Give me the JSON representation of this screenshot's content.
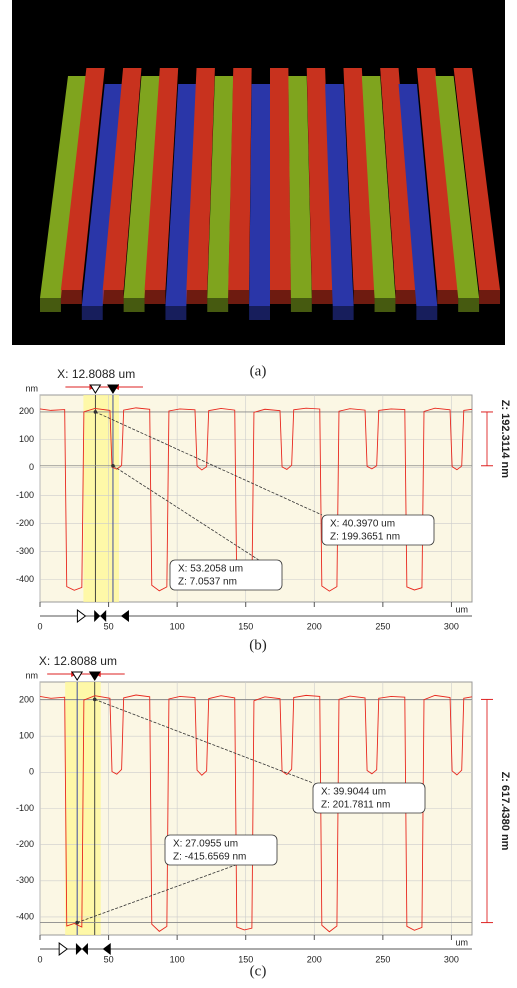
{
  "captions": [
    "(a)",
    "(b)",
    "(c)"
  ],
  "chart_data": [
    {
      "type": "line",
      "header": "X: 12.8088 um",
      "z_label": "Z: 192.3114 nm",
      "y_unit": "nm",
      "x_unit": "um",
      "xlim": [
        0,
        315
      ],
      "ylim": [
        -480,
        260
      ],
      "xticks": [
        0,
        50,
        100,
        150,
        200,
        250,
        300
      ],
      "yticks": [
        200,
        100,
        0,
        -100,
        -200,
        -300,
        -400
      ],
      "grid": true,
      "x": [
        0,
        8,
        18,
        19.5,
        25,
        30.5,
        32,
        40,
        51,
        52.5,
        56,
        59.5,
        61,
        70,
        80,
        81.5,
        87,
        92.5,
        94,
        102,
        113,
        114.5,
        118,
        121.5,
        123,
        132,
        142,
        143.5,
        149,
        154.5,
        156,
        164,
        175,
        176.5,
        180,
        183.5,
        185,
        194,
        204,
        205.5,
        211,
        216.5,
        218,
        226,
        237,
        238.5,
        242,
        245.5,
        247,
        256,
        266,
        267.5,
        273,
        278.5,
        280,
        288,
        299,
        300.5,
        304,
        307.5,
        309,
        315
      ],
      "series": [
        {
          "color": "#e8281e",
          "values": [
            210,
            205,
            208,
            -425,
            -438,
            -428,
            200,
            212,
            205,
            2,
            -5,
            8,
            206,
            214,
            209,
            -420,
            -440,
            -426,
            203,
            210,
            207,
            6,
            -8,
            4,
            204,
            212,
            206,
            -428,
            -436,
            -431,
            198,
            209,
            204,
            3,
            -6,
            9,
            207,
            213,
            210,
            -423,
            -441,
            -425,
            202,
            211,
            206,
            5,
            -4,
            7,
            205,
            210,
            208,
            -426,
            -437,
            -429,
            201,
            213,
            207,
            4,
            -7,
            6,
            205,
            209
          ]
        }
      ],
      "annotations": [
        {
          "x": 40.397,
          "z": 199.3651,
          "x_label": "X: 40.3970 um",
          "z_label": "Z: 199.3651 nm"
        },
        {
          "x": 53.2058,
          "z": 7.0537,
          "x_label": "X: 53.2058 um",
          "z_label": "Z: 7.0537 nm"
        }
      ]
    },
    {
      "type": "line",
      "header": "X: 12.8088 um",
      "z_label": "Z: 617.4380 nm",
      "y_unit": "nm",
      "x_unit": "um",
      "xlim": [
        0,
        315
      ],
      "ylim": [
        -450,
        250
      ],
      "xticks": [
        0,
        50,
        100,
        150,
        200,
        250,
        300
      ],
      "yticks": [
        200,
        100,
        0,
        -100,
        -200,
        -300,
        -400
      ],
      "grid": true,
      "x": [
        0,
        8,
        18,
        19.5,
        25,
        30.5,
        32,
        40,
        51,
        52.5,
        56,
        59.5,
        61,
        70,
        80,
        81.5,
        87,
        92.5,
        94,
        102,
        113,
        114.5,
        118,
        121.5,
        123,
        132,
        142,
        143.5,
        149,
        154.5,
        156,
        164,
        175,
        176.5,
        180,
        183.5,
        185,
        194,
        204,
        205.5,
        211,
        216.5,
        218,
        226,
        237,
        238.5,
        242,
        245.5,
        247,
        256,
        266,
        267.5,
        273,
        278.5,
        280,
        288,
        299,
        300.5,
        304,
        307.5,
        309,
        315
      ],
      "series": [
        {
          "color": "#e8281e",
          "values": [
            210,
            205,
            208,
            -425,
            -418,
            -428,
            200,
            212,
            205,
            2,
            -5,
            8,
            206,
            214,
            209,
            -420,
            -440,
            -426,
            203,
            210,
            207,
            6,
            -8,
            4,
            204,
            212,
            206,
            -428,
            -436,
            -431,
            198,
            209,
            204,
            3,
            -6,
            9,
            207,
            213,
            210,
            -423,
            -441,
            -425,
            202,
            211,
            206,
            5,
            -4,
            7,
            205,
            210,
            208,
            -426,
            -437,
            -429,
            201,
            213,
            207,
            4,
            -7,
            6,
            205,
            209
          ]
        }
      ],
      "annotations": [
        {
          "x": 39.9044,
          "z": 201.7811,
          "x_label": "X: 39.9044 um",
          "z_label": "Z: 201.7811 nm"
        },
        {
          "x": 27.0955,
          "z": -415.6569,
          "x_label": "X: 27.0955 um",
          "z_label": "Z: -415.6569 nm"
        }
      ]
    }
  ]
}
